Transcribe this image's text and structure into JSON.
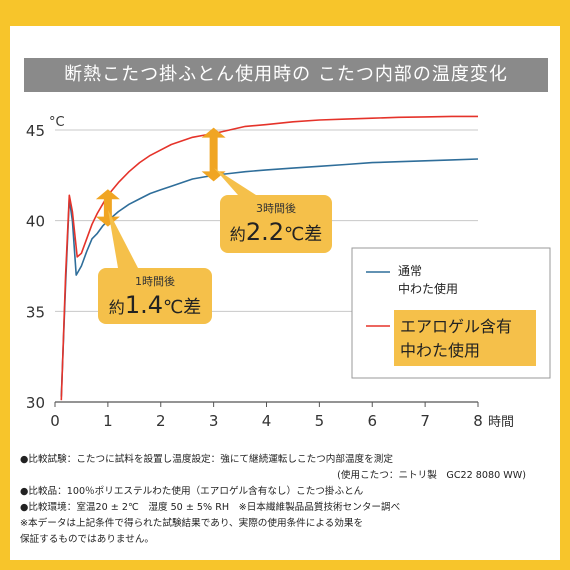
{
  "title": "断熱こたつ掛ふとん使用時の こたつ内部の温度変化",
  "colors": {
    "frame": "#f7c52b",
    "title_bg": "#8a8a8a",
    "annotation_bg": "#f5c04a",
    "series_normal": "#2f6e9a",
    "series_aerogel": "#e5332a",
    "arrow": "#f0a523"
  },
  "chart_data": {
    "type": "line",
    "xlabel": "時間",
    "ylabel": "°C",
    "xlim": [
      0,
      8
    ],
    "ylim": [
      30,
      46
    ],
    "xticks": [
      "0",
      "1",
      "2",
      "3",
      "4",
      "5",
      "6",
      "7",
      "8"
    ],
    "yticks": [
      "30",
      "35",
      "40",
      "45"
    ],
    "grid": "horizontal",
    "legend_position": "right",
    "series": [
      {
        "name": "通常\n中わた使用",
        "color": "#2f6e9a",
        "points": [
          [
            0.12,
            30.3
          ],
          [
            0.2,
            36.5
          ],
          [
            0.27,
            41.2
          ],
          [
            0.33,
            40.0
          ],
          [
            0.4,
            37.0
          ],
          [
            0.5,
            37.5
          ],
          [
            0.6,
            38.3
          ],
          [
            0.7,
            39.0
          ],
          [
            0.8,
            39.3
          ],
          [
            0.9,
            39.7
          ],
          [
            1.0,
            40.0
          ],
          [
            1.2,
            40.5
          ],
          [
            1.4,
            40.9
          ],
          [
            1.6,
            41.2
          ],
          [
            1.8,
            41.5
          ],
          [
            2.0,
            41.7
          ],
          [
            2.2,
            41.9
          ],
          [
            2.4,
            42.1
          ],
          [
            2.6,
            42.3
          ],
          [
            2.8,
            42.4
          ],
          [
            3.0,
            42.5
          ],
          [
            3.3,
            42.6
          ],
          [
            3.6,
            42.7
          ],
          [
            4.0,
            42.8
          ],
          [
            4.5,
            42.9
          ],
          [
            5.0,
            43.0
          ],
          [
            5.5,
            43.1
          ],
          [
            6.0,
            43.2
          ],
          [
            6.5,
            43.25
          ],
          [
            7.0,
            43.3
          ],
          [
            7.5,
            43.35
          ],
          [
            8.0,
            43.4
          ]
        ]
      },
      {
        "name": "エアロゲル含有\n中わた使用",
        "color": "#e5332a",
        "points": [
          [
            0.12,
            30.1
          ],
          [
            0.2,
            37.0
          ],
          [
            0.27,
            41.4
          ],
          [
            0.33,
            40.5
          ],
          [
            0.42,
            38.0
          ],
          [
            0.5,
            38.2
          ],
          [
            0.6,
            39.0
          ],
          [
            0.7,
            39.8
          ],
          [
            0.8,
            40.4
          ],
          [
            0.9,
            40.9
          ],
          [
            1.0,
            41.4
          ],
          [
            1.2,
            42.1
          ],
          [
            1.4,
            42.7
          ],
          [
            1.6,
            43.2
          ],
          [
            1.8,
            43.6
          ],
          [
            2.0,
            43.9
          ],
          [
            2.2,
            44.2
          ],
          [
            2.4,
            44.4
          ],
          [
            2.6,
            44.6
          ],
          [
            2.8,
            44.7
          ],
          [
            3.0,
            44.8
          ],
          [
            3.3,
            45.0
          ],
          [
            3.6,
            45.2
          ],
          [
            4.0,
            45.3
          ],
          [
            4.5,
            45.45
          ],
          [
            5.0,
            45.55
          ],
          [
            5.5,
            45.6
          ],
          [
            6.0,
            45.65
          ],
          [
            6.5,
            45.7
          ],
          [
            7.0,
            45.72
          ],
          [
            7.5,
            45.75
          ],
          [
            8.0,
            45.75
          ]
        ]
      }
    ],
    "annotations": [
      {
        "label_small": "1時間後",
        "label_prefix": "約",
        "label_value": "1.4",
        "label_suffix": "℃差",
        "x": 1,
        "y_low": 40.0,
        "y_high": 41.4
      },
      {
        "label_small": "3時間後",
        "label_prefix": "約",
        "label_value": "2.2",
        "label_suffix": "℃差",
        "x": 3,
        "y_low": 42.5,
        "y_high": 44.8
      }
    ]
  },
  "notes": [
    "●比較試験：こたつに試料を設置し温度設定：強にて継続運転しこたつ内部温度を測定",
    "(使用こたつ：ニトリ製　GC22 8080 WW)",
    "●比較品：100％ポリエステルわた使用（エアロゲル含有なし）こたつ掛ふとん",
    "●比較環境：室温20 ± 2℃　湿度 50 ± 5% RH　※日本繊維製品品質技術センター調べ",
    "※本データは上記条件で得られた試験結果であり、実際の使用条件による効果を",
    "保証するものではありません。"
  ]
}
